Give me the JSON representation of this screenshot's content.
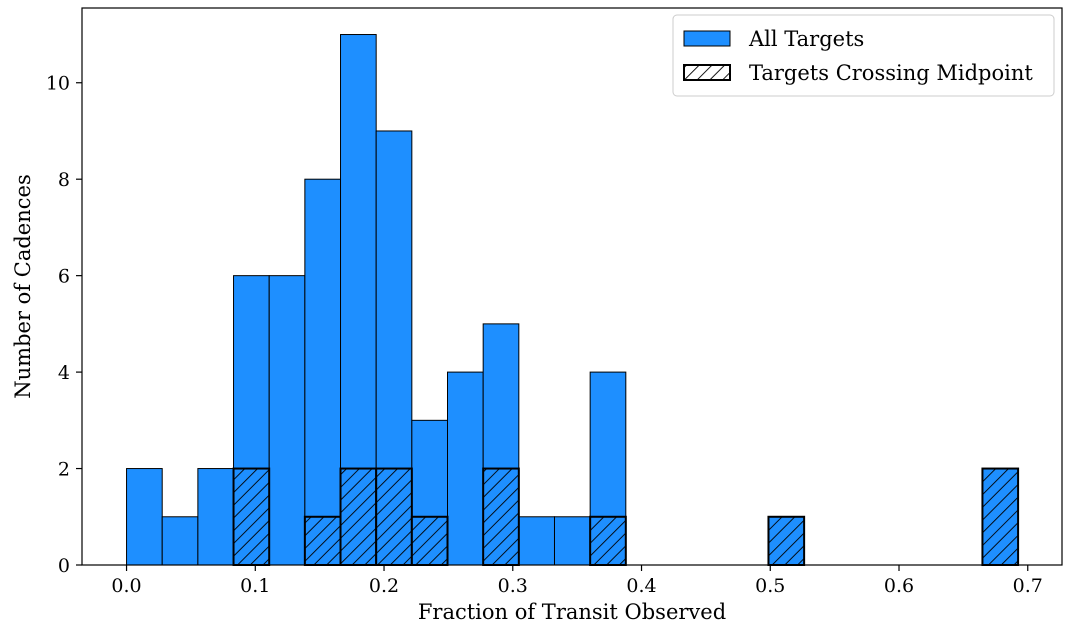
{
  "chart_data": {
    "type": "bar",
    "title": "",
    "xlabel": "Fraction of Transit Observed",
    "ylabel": "Number of Cadences",
    "xlim": [
      -0.0346,
      0.7266
    ],
    "ylim": [
      0,
      11.55
    ],
    "xticks": [
      "0.0",
      "0.1",
      "0.2",
      "0.3",
      "0.4",
      "0.5",
      "0.6",
      "0.7"
    ],
    "xtick_values": [
      0.0,
      0.1,
      0.2,
      0.3,
      0.4,
      0.5,
      0.6,
      0.7
    ],
    "yticks": [
      "0",
      "2",
      "4",
      "6",
      "8",
      "10"
    ],
    "ytick_values": [
      0,
      2,
      4,
      6,
      8,
      10
    ],
    "bin_start": 0.0,
    "bin_width": 0.0277,
    "grid": false,
    "legend_position": "top-right",
    "colors": {
      "all": "#1e8fff",
      "edge": "#000000",
      "background": "#ffffff"
    },
    "series": [
      {
        "name": "All Targets",
        "values": [
          2,
          1,
          2,
          6,
          6,
          8,
          11,
          9,
          3,
          4,
          5,
          1,
          1,
          4,
          0,
          0,
          0,
          0,
          1,
          0,
          0,
          0,
          0,
          0,
          2
        ]
      },
      {
        "name": "Targets Crossing Midpoint",
        "hatch": "////",
        "values": [
          0,
          0,
          0,
          2,
          0,
          1,
          2,
          2,
          1,
          0,
          2,
          0,
          0,
          1,
          0,
          0,
          0,
          0,
          1,
          0,
          0,
          0,
          0,
          0,
          2
        ]
      }
    ]
  }
}
